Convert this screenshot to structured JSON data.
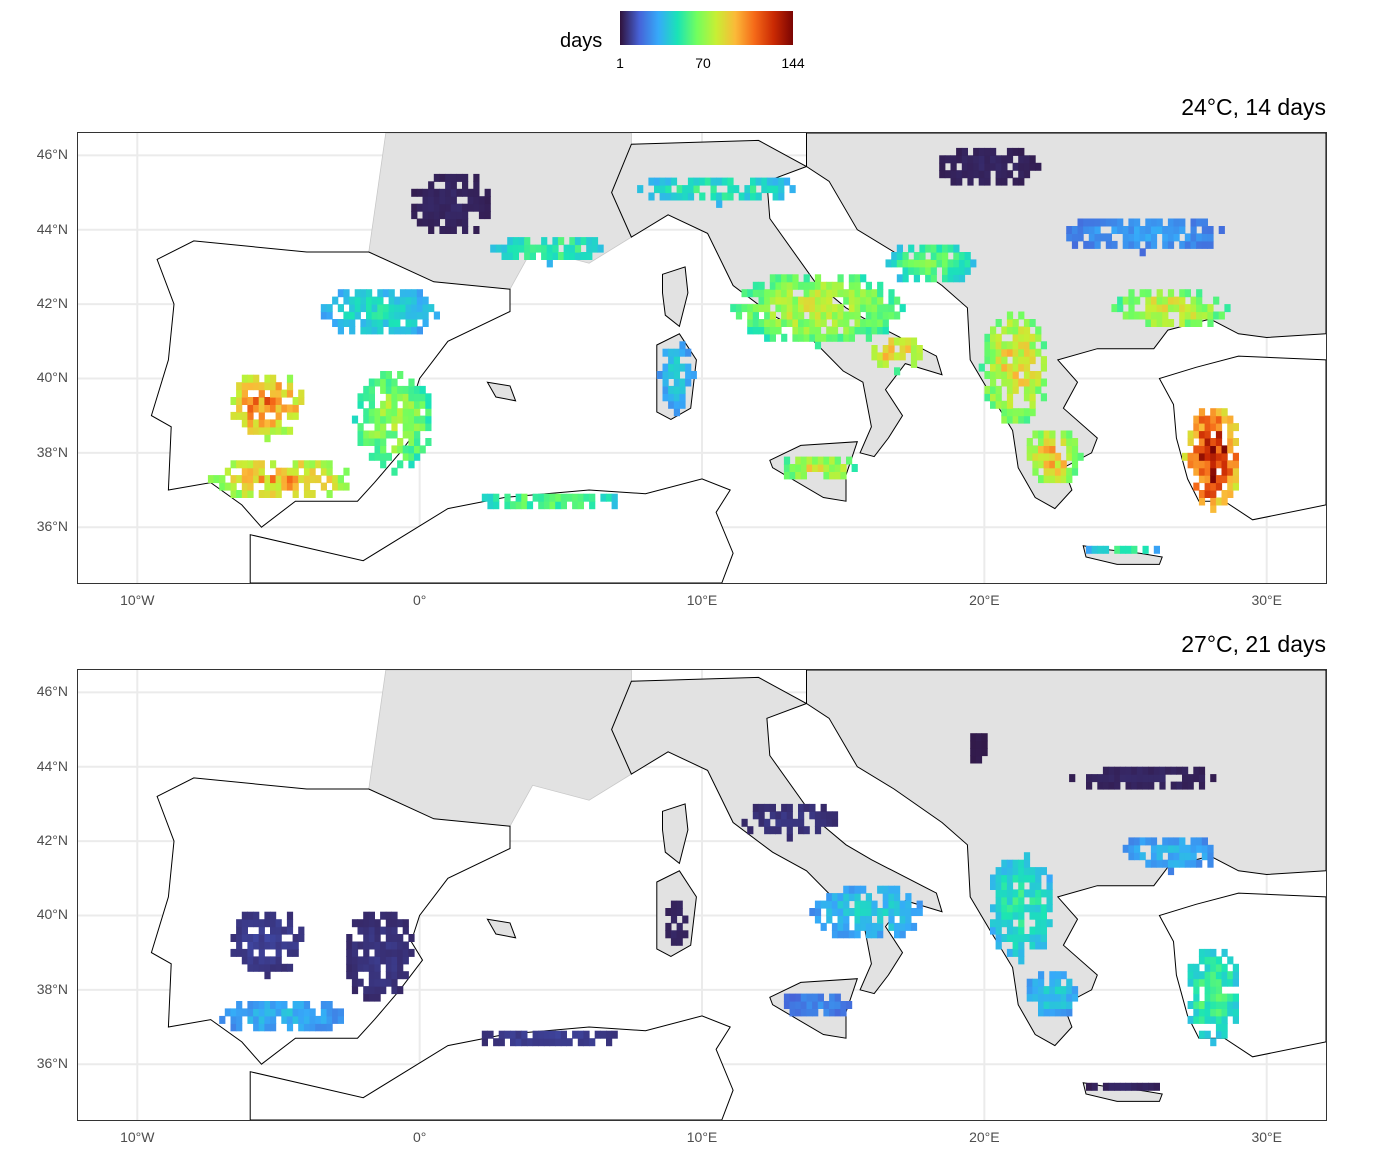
{
  "legend": {
    "title": "days",
    "ticks": [
      {
        "label": "1",
        "value": 1
      },
      {
        "label": "70",
        "value": 70
      },
      {
        "label": "144",
        "value": 144
      }
    ],
    "range": [
      1,
      144
    ],
    "colors": [
      "#30123b",
      "#4662d7",
      "#36aaf9",
      "#1ae4b6",
      "#72fe5e",
      "#c7ef34",
      "#fbb938",
      "#f56918",
      "#c92903",
      "#7a0403"
    ]
  },
  "colors": {
    "land": "#e2e2e2",
    "grid": "#ebebeb",
    "border": "#333333",
    "sea": "#ffffff"
  },
  "map_extent": {
    "lon": [
      -12.1,
      32.1
    ],
    "lat": [
      34.5,
      46.6
    ]
  },
  "axes": {
    "y_ticks": [
      {
        "label": "46°N",
        "lat": 46
      },
      {
        "label": "44°N",
        "lat": 44
      },
      {
        "label": "42°N",
        "lat": 42
      },
      {
        "label": "40°N",
        "lat": 40
      },
      {
        "label": "38°N",
        "lat": 38
      },
      {
        "label": "36°N",
        "lat": 36
      }
    ],
    "x_ticks": [
      {
        "label": "10°W",
        "lon": -10
      },
      {
        "label": "0°",
        "lon": 0
      },
      {
        "label": "10°E",
        "lon": 10
      },
      {
        "label": "20°E",
        "lon": 20
      },
      {
        "label": "30°E",
        "lon": 30
      }
    ]
  },
  "panels": [
    {
      "title": "24°C, 14 days",
      "regions": [
        {
          "name": "central-spain",
          "lon": -5.5,
          "lat": 39.2,
          "rlon": 1.4,
          "rlat": 0.9,
          "days": 105
        },
        {
          "name": "andalusia",
          "lon": -5.0,
          "lat": 37.2,
          "rlon": 2.5,
          "rlat": 0.6,
          "days": 95
        },
        {
          "name": "east-spain",
          "lon": -1.0,
          "lat": 38.8,
          "rlon": 1.4,
          "rlat": 1.4,
          "days": 70
        },
        {
          "name": "ebro-valley",
          "lon": -1.5,
          "lat": 41.7,
          "rlon": 2.2,
          "rlat": 0.7,
          "days": 45
        },
        {
          "name": "south-france",
          "lon": 1.0,
          "lat": 44.6,
          "rlon": 1.5,
          "rlat": 0.9,
          "days": 5
        },
        {
          "name": "french-coast",
          "lon": 4.5,
          "lat": 43.4,
          "rlon": 2.0,
          "rlat": 0.4,
          "days": 55
        },
        {
          "name": "po-valley",
          "lon": 10.5,
          "lat": 45.0,
          "rlon": 2.8,
          "rlat": 0.4,
          "days": 50
        },
        {
          "name": "italy-peninsula",
          "lon": 14.0,
          "lat": 41.8,
          "rlon": 3.0,
          "rlat": 1.0,
          "days": 75
        },
        {
          "name": "puglia",
          "lon": 16.8,
          "lat": 40.6,
          "rlon": 1.0,
          "rlat": 0.5,
          "days": 90
        },
        {
          "name": "sicily",
          "lon": 14.0,
          "lat": 37.5,
          "rlon": 1.3,
          "rlat": 0.4,
          "days": 80
        },
        {
          "name": "sardinia",
          "lon": 9.0,
          "lat": 40.0,
          "rlon": 0.6,
          "rlat": 1.0,
          "days": 40
        },
        {
          "name": "north-africa",
          "lon": 4.5,
          "lat": 36.6,
          "rlon": 2.5,
          "rlat": 0.3,
          "days": 60
        },
        {
          "name": "balkan-coast",
          "lon": 18.0,
          "lat": 43.0,
          "rlon": 1.5,
          "rlat": 0.6,
          "days": 60
        },
        {
          "name": "hungary",
          "lon": 20.0,
          "lat": 45.6,
          "rlon": 1.8,
          "rlat": 0.6,
          "days": 5
        },
        {
          "name": "west-greece",
          "lon": 21.0,
          "lat": 40.2,
          "rlon": 1.2,
          "rlat": 1.6,
          "days": 85
        },
        {
          "name": "peloponnese",
          "lon": 22.3,
          "lat": 37.8,
          "rlon": 1.0,
          "rlat": 0.8,
          "days": 90
        },
        {
          "name": "bulgaria-north",
          "lon": 25.5,
          "lat": 43.8,
          "rlon": 3.0,
          "rlat": 0.5,
          "days": 30
        },
        {
          "name": "thrace",
          "lon": 26.5,
          "lat": 41.8,
          "rlon": 2.0,
          "rlat": 0.6,
          "days": 80
        },
        {
          "name": "west-turkey",
          "lon": 28.0,
          "lat": 37.8,
          "rlon": 1.0,
          "rlat": 1.4,
          "days": 128
        },
        {
          "name": "crete",
          "lon": 24.8,
          "lat": 35.3,
          "rlon": 1.2,
          "rlat": 0.2,
          "days": 50
        }
      ]
    },
    {
      "title": "27°C, 21 days",
      "regions": [
        {
          "name": "central-spain",
          "lon": -5.5,
          "lat": 39.2,
          "rlon": 1.4,
          "rlat": 0.9,
          "days": 10
        },
        {
          "name": "andalusia",
          "lon": -5.0,
          "lat": 37.2,
          "rlon": 2.3,
          "rlat": 0.5,
          "days": 35
        },
        {
          "name": "east-spain",
          "lon": -1.5,
          "lat": 38.8,
          "rlon": 1.3,
          "rlat": 1.3,
          "days": 8
        },
        {
          "name": "south-italy",
          "lon": 15.8,
          "lat": 40.0,
          "rlon": 2.0,
          "rlat": 0.8,
          "days": 40
        },
        {
          "name": "italy-coast",
          "lon": 13.0,
          "lat": 42.5,
          "rlon": 1.8,
          "rlat": 0.5,
          "days": 8
        },
        {
          "name": "sicily",
          "lon": 14.0,
          "lat": 37.5,
          "rlon": 1.3,
          "rlat": 0.4,
          "days": 25
        },
        {
          "name": "sardinia",
          "lon": 9.0,
          "lat": 39.7,
          "rlon": 0.5,
          "rlat": 0.7,
          "days": 5
        },
        {
          "name": "north-africa",
          "lon": 4.5,
          "lat": 36.6,
          "rlon": 2.5,
          "rlat": 0.3,
          "days": 10
        },
        {
          "name": "west-greece",
          "lon": 21.2,
          "lat": 40.2,
          "rlon": 1.2,
          "rlat": 1.5,
          "days": 50
        },
        {
          "name": "peloponnese",
          "lon": 22.3,
          "lat": 37.8,
          "rlon": 1.0,
          "rlat": 0.7,
          "days": 40
        },
        {
          "name": "bulgaria-north",
          "lon": 25.5,
          "lat": 43.6,
          "rlon": 2.5,
          "rlat": 0.4,
          "days": 5
        },
        {
          "name": "thrace",
          "lon": 26.5,
          "lat": 41.6,
          "rlon": 1.8,
          "rlat": 0.5,
          "days": 35
        },
        {
          "name": "west-turkey",
          "lon": 28.0,
          "lat": 37.8,
          "rlon": 1.0,
          "rlat": 1.3,
          "days": 55
        },
        {
          "name": "crete",
          "lon": 24.8,
          "lat": 35.3,
          "rlon": 1.2,
          "rlat": 0.2,
          "days": 5
        },
        {
          "name": "romania",
          "lon": 19.7,
          "lat": 44.4,
          "rlon": 0.4,
          "rlat": 0.5,
          "days": 3
        }
      ]
    }
  ]
}
